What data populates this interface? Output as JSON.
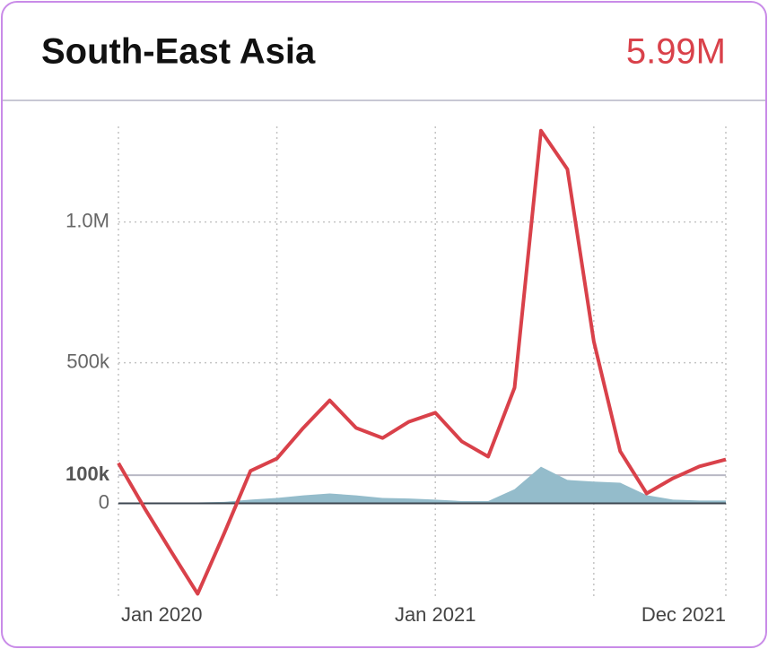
{
  "chart_data": {
    "type": "line",
    "title": "South-East Asia",
    "headline_value": "5.99M",
    "categories": [
      "Jan 2020",
      null,
      null,
      null,
      null,
      null,
      null,
      null,
      null,
      null,
      null,
      null,
      "Jan 2021",
      null,
      null,
      null,
      null,
      null,
      null,
      null,
      null,
      null,
      null,
      "Dec 2021"
    ],
    "series": [
      {
        "color": "#d9414a",
        "values": [
          143000,
          -19000,
          -172000,
          -322000,
          -108000,
          115000,
          159000,
          268000,
          366000,
          268000,
          232000,
          290000,
          322000,
          220000,
          166000,
          411000,
          1325000,
          1188000,
          576000,
          185000,
          35000,
          89000,
          131000,
          156000
        ]
      },
      {
        "color": "#94bccb",
        "values": [
          0,
          0,
          2000,
          3000,
          5000,
          13000,
          19000,
          28000,
          35000,
          28000,
          19000,
          17000,
          13000,
          8000,
          8000,
          50000,
          130000,
          83000,
          77000,
          73000,
          29000,
          13000,
          10000,
          10000
        ]
      }
    ],
    "ylim": [
      -330000,
      1340000
    ],
    "yticks": [
      0,
      {
        "value": 100000,
        "label": "100k"
      },
      {
        "value": 500000,
        "label": "500k"
      },
      {
        "value": 1000000,
        "label": "1.0M"
      }
    ]
  }
}
